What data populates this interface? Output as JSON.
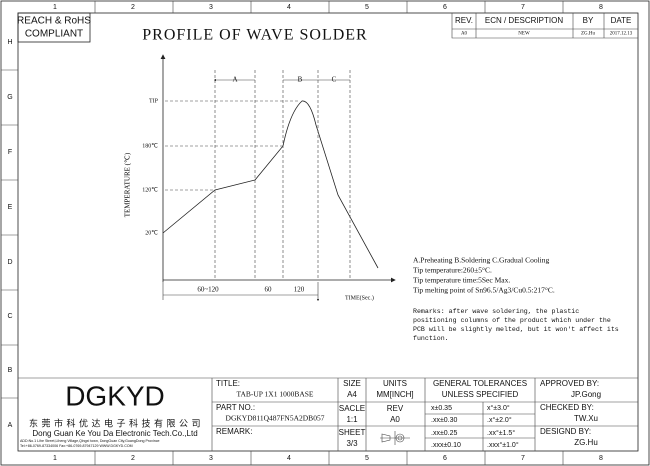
{
  "frame": {
    "columns": [
      "1",
      "2",
      "3",
      "4",
      "5",
      "6",
      "7",
      "8"
    ],
    "rows": [
      "H",
      "G",
      "F",
      "E",
      "D",
      "C",
      "B",
      "A"
    ]
  },
  "header": {
    "compliance": [
      "REACH & RoHS",
      "COMPLIANT"
    ],
    "title": "PROFILE OF WAVE SOLDER"
  },
  "revision": {
    "headers": [
      "REV.",
      "ECN / DESCRIPTION",
      "BY",
      "DATE"
    ],
    "row": [
      "A0",
      "NEW",
      "ZG.Hu",
      "2017.12.13"
    ]
  },
  "diagram": {
    "zones": [
      "A",
      "B",
      "C"
    ],
    "temperatures": [
      "TIP",
      "180℃",
      "120℃",
      "20℃"
    ],
    "y_label": "TEMPERATURE (℃)",
    "durations": [
      "60~120",
      "60",
      "120"
    ],
    "x_label": "TIME(Sec.)"
  },
  "notes": [
    "A.Preheating  B.Soldering  C.Gradual Cooling",
    "Tip temperature:260±5°C.",
    "Tip temperature time:5Sec Max.",
    "Tip melting point of Sn96.5/Ag3/Cu0.5:217°C."
  ],
  "remarks": [
    "Remarks: after wave soldering, the plastic",
    "positioning columns of the product  which under the",
    "PCB will be slightly melted, but it won't affect its",
    "function."
  ],
  "title_block": {
    "logo": "DGKYD",
    "company_cn": "东 莞 市 科 优 达 电 子 科 技 有 限 公 司",
    "company_en": "Dong Guan Ke You Da Electronic Tech.Co.,Ltd",
    "address": [
      "ADD:No.1 Lihe Street,Liheng Village,Qingxi town, DongGuan City,GuangDong Province",
      "Tel:+86-0769-87334006  Fax:+86-0769-87947129  WWW.DGKYD.COM"
    ],
    "title_label": "TITLE:",
    "title": "TAB-UP 1X1 1000BASE",
    "part_no_label": "PART NO.:",
    "part_no": "DGKYD811Q487FN5A2DB057",
    "remark_label": "REMARK:",
    "size_label": "SIZE",
    "size": "A4",
    "scale_label": "SACLE",
    "scale": "1:1",
    "sheet_label": "SHEET",
    "sheet": "3/3",
    "units_label": "UNITS",
    "units": "MM[INCH]",
    "rev_label": "REV",
    "rev": "A0",
    "tolerance_label": [
      "GENERAL TOLERANCES",
      "UNLESS SPECIFIED"
    ],
    "tolerances": [
      [
        "x±0.35",
        "x°±3.0°"
      ],
      [
        ".xx±0.30",
        ".x°±2.0°"
      ],
      [
        ".xx±0.25",
        ".xx°±1.5°"
      ],
      [
        ".xxx±0.10",
        ".xxx°±1.0°"
      ]
    ],
    "approved_label": "APPROVED BY:",
    "approved": "JP.Gong",
    "checked_label": "CHECKED BY:",
    "checked": "TW.Xu",
    "designed_label": "DESIGND BY:",
    "designed": "ZG.Hu"
  }
}
